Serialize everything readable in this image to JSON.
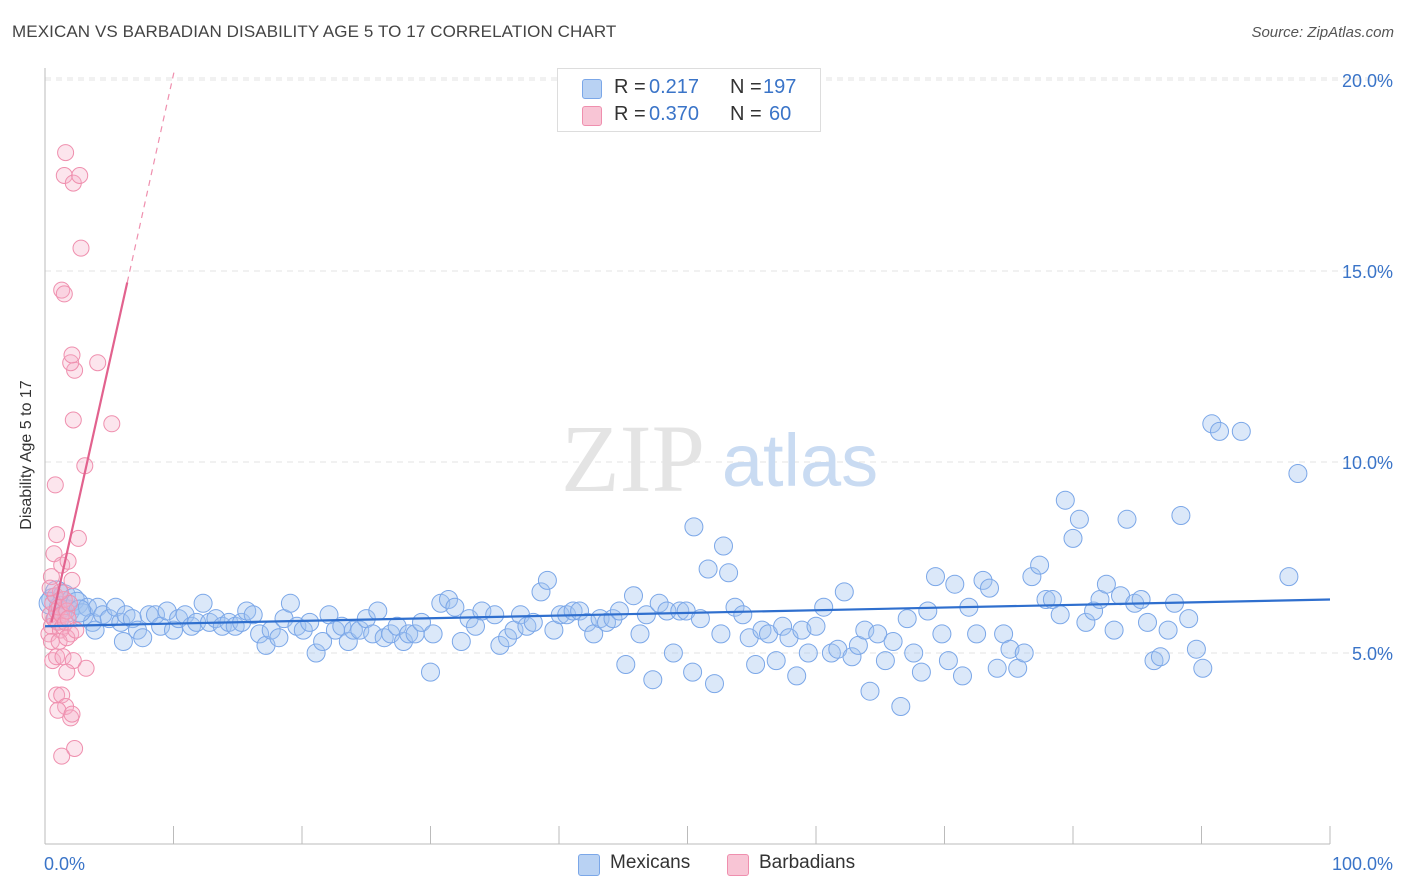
{
  "title": "MEXICAN VS BARBADIAN DISABILITY AGE 5 TO 17 CORRELATION CHART",
  "source": "Source: ZipAtlas.com",
  "watermark": {
    "zip": "ZIP",
    "atlas": "atlas"
  },
  "legend_top": [
    {
      "r_label": "R =",
      "r_value": "0.217",
      "n_label": "N =",
      "n_value": "197",
      "color": "#7ba7e8",
      "fill": "#b9d2f3"
    },
    {
      "r_label": "R =",
      "r_value": "0.370",
      "n_label": "N =",
      "n_value": "60",
      "color": "#ef8fae",
      "fill": "#f8c5d5"
    }
  ],
  "legend_bottom": [
    {
      "label": "Mexicans",
      "color": "#7ba7e8",
      "fill": "#b9d2f3"
    },
    {
      "label": "Barbadians",
      "color": "#ef8fae",
      "fill": "#f8c5d5"
    }
  ],
  "chart_data": {
    "type": "scatter",
    "title": "MEXICAN VS BARBADIAN DISABILITY AGE 5 TO 17 CORRELATION CHART",
    "xlabel": "",
    "ylabel": "Disability Age 5 to 17",
    "xlim": [
      0,
      100
    ],
    "ylim": [
      0,
      21
    ],
    "x_tick_labels": [
      "0.0%",
      "100.0%"
    ],
    "y_ticks": [
      5,
      10,
      15,
      20
    ],
    "y_tick_labels": [
      "5.0%",
      "10.0%",
      "15.0%",
      "20.0%"
    ],
    "grid": true,
    "legend_position": "top-center",
    "series": [
      {
        "name": "Mexicans",
        "color": "#5b8fdb",
        "trend": {
          "x": [
            0,
            100
          ],
          "y": [
            5.7,
            6.4
          ]
        },
        "points": [
          [
            0.6,
            6.4
          ],
          [
            0.9,
            6.6
          ],
          [
            1.2,
            6.2
          ],
          [
            1.5,
            6.5
          ],
          [
            1.8,
            6.1
          ],
          [
            2.2,
            6.4
          ],
          [
            2.5,
            6.3
          ],
          [
            2.9,
            6.0
          ],
          [
            3.3,
            6.2
          ],
          [
            3.7,
            5.8
          ],
          [
            4.1,
            6.2
          ],
          [
            4.5,
            6.0
          ],
          [
            5.0,
            5.9
          ],
          [
            5.5,
            6.2
          ],
          [
            5.9,
            5.8
          ],
          [
            6.3,
            6.0
          ],
          [
            6.8,
            5.9
          ],
          [
            7.2,
            5.6
          ],
          [
            7.6,
            5.4
          ],
          [
            8.1,
            6.0
          ],
          [
            8.6,
            6.0
          ],
          [
            9.0,
            5.7
          ],
          [
            9.5,
            6.1
          ],
          [
            10.0,
            5.6
          ],
          [
            10.4,
            5.9
          ],
          [
            10.9,
            6.0
          ],
          [
            11.4,
            5.7
          ],
          [
            11.8,
            5.8
          ],
          [
            12.3,
            6.3
          ],
          [
            12.8,
            5.8
          ],
          [
            13.3,
            5.9
          ],
          [
            13.8,
            5.7
          ],
          [
            14.3,
            5.8
          ],
          [
            14.8,
            5.7
          ],
          [
            15.3,
            5.8
          ],
          [
            15.7,
            6.1
          ],
          [
            16.2,
            6.0
          ],
          [
            16.7,
            5.5
          ],
          [
            17.2,
            5.2
          ],
          [
            17.6,
            5.6
          ],
          [
            18.2,
            5.4
          ],
          [
            18.6,
            5.9
          ],
          [
            19.1,
            6.3
          ],
          [
            19.6,
            5.7
          ],
          [
            20.1,
            5.6
          ],
          [
            20.6,
            5.8
          ],
          [
            21.1,
            5.0
          ],
          [
            21.6,
            5.3
          ],
          [
            22.1,
            6.0
          ],
          [
            22.6,
            5.6
          ],
          [
            23.1,
            5.7
          ],
          [
            23.6,
            5.3
          ],
          [
            24.0,
            5.6
          ],
          [
            24.5,
            5.6
          ],
          [
            25.0,
            5.9
          ],
          [
            25.5,
            5.5
          ],
          [
            25.9,
            6.1
          ],
          [
            26.4,
            5.4
          ],
          [
            26.9,
            5.5
          ],
          [
            27.4,
            5.7
          ],
          [
            27.9,
            5.3
          ],
          [
            28.3,
            5.5
          ],
          [
            28.8,
            5.5
          ],
          [
            29.3,
            5.8
          ],
          [
            30.0,
            4.5
          ],
          [
            30.2,
            5.5
          ],
          [
            30.8,
            6.3
          ],
          [
            31.4,
            6.4
          ],
          [
            31.9,
            6.2
          ],
          [
            32.4,
            5.3
          ],
          [
            33.0,
            5.9
          ],
          [
            33.5,
            5.7
          ],
          [
            34.0,
            6.1
          ],
          [
            35.0,
            6.0
          ],
          [
            35.4,
            5.2
          ],
          [
            36.0,
            5.4
          ],
          [
            36.5,
            5.6
          ],
          [
            37.0,
            6.0
          ],
          [
            37.5,
            5.7
          ],
          [
            38.0,
            5.8
          ],
          [
            38.6,
            6.6
          ],
          [
            39.1,
            6.9
          ],
          [
            39.6,
            5.6
          ],
          [
            40.1,
            6.0
          ],
          [
            40.6,
            6.0
          ],
          [
            41.1,
            6.1
          ],
          [
            41.6,
            6.1
          ],
          [
            42.2,
            5.8
          ],
          [
            42.7,
            5.5
          ],
          [
            43.2,
            5.9
          ],
          [
            43.7,
            5.8
          ],
          [
            44.2,
            5.9
          ],
          [
            44.7,
            6.1
          ],
          [
            45.2,
            4.7
          ],
          [
            45.8,
            6.5
          ],
          [
            46.3,
            5.5
          ],
          [
            46.8,
            6.0
          ],
          [
            47.3,
            4.3
          ],
          [
            47.8,
            6.3
          ],
          [
            48.4,
            6.1
          ],
          [
            48.9,
            5.0
          ],
          [
            49.4,
            6.1
          ],
          [
            49.9,
            6.1
          ],
          [
            50.4,
            4.5
          ],
          [
            51.0,
            5.9
          ],
          [
            50.5,
            8.3
          ],
          [
            51.6,
            7.2
          ],
          [
            52.1,
            4.2
          ],
          [
            52.6,
            5.5
          ],
          [
            52.8,
            7.8
          ],
          [
            53.2,
            7.1
          ],
          [
            53.7,
            6.2
          ],
          [
            54.3,
            6.0
          ],
          [
            54.8,
            5.4
          ],
          [
            55.3,
            4.7
          ],
          [
            55.8,
            5.6
          ],
          [
            56.3,
            5.5
          ],
          [
            56.9,
            4.8
          ],
          [
            57.4,
            5.7
          ],
          [
            57.9,
            5.4
          ],
          [
            58.5,
            4.4
          ],
          [
            58.9,
            5.6
          ],
          [
            59.4,
            5.0
          ],
          [
            60.0,
            5.7
          ],
          [
            60.6,
            6.2
          ],
          [
            61.2,
            5.0
          ],
          [
            61.7,
            5.1
          ],
          [
            62.2,
            6.6
          ],
          [
            62.8,
            4.9
          ],
          [
            63.3,
            5.2
          ],
          [
            63.8,
            5.6
          ],
          [
            64.2,
            4.0
          ],
          [
            64.8,
            5.5
          ],
          [
            65.4,
            4.8
          ],
          [
            66.0,
            5.3
          ],
          [
            66.6,
            3.6
          ],
          [
            67.1,
            5.9
          ],
          [
            67.6,
            5.0
          ],
          [
            68.2,
            4.5
          ],
          [
            68.7,
            6.1
          ],
          [
            69.3,
            7.0
          ],
          [
            69.8,
            5.5
          ],
          [
            70.3,
            4.8
          ],
          [
            70.8,
            6.8
          ],
          [
            71.4,
            4.4
          ],
          [
            71.9,
            6.2
          ],
          [
            72.5,
            5.5
          ],
          [
            73.0,
            6.9
          ],
          [
            73.5,
            6.7
          ],
          [
            74.1,
            4.6
          ],
          [
            74.6,
            5.5
          ],
          [
            75.1,
            5.1
          ],
          [
            75.7,
            4.6
          ],
          [
            76.2,
            5.0
          ],
          [
            76.8,
            7.0
          ],
          [
            77.4,
            7.3
          ],
          [
            77.9,
            6.4
          ],
          [
            78.4,
            6.4
          ],
          [
            79.0,
            6.0
          ],
          [
            79.4,
            9.0
          ],
          [
            80.0,
            8.0
          ],
          [
            80.5,
            8.5
          ],
          [
            81.0,
            5.8
          ],
          [
            81.6,
            6.1
          ],
          [
            82.1,
            6.4
          ],
          [
            82.6,
            6.8
          ],
          [
            83.2,
            5.6
          ],
          [
            83.7,
            6.5
          ],
          [
            84.2,
            8.5
          ],
          [
            84.8,
            6.3
          ],
          [
            85.3,
            6.4
          ],
          [
            85.8,
            5.8
          ],
          [
            86.3,
            4.8
          ],
          [
            86.8,
            4.9
          ],
          [
            87.4,
            5.6
          ],
          [
            87.9,
            6.3
          ],
          [
            88.4,
            8.6
          ],
          [
            89.0,
            5.9
          ],
          [
            89.6,
            5.1
          ],
          [
            90.1,
            4.6
          ],
          [
            90.8,
            11.0
          ],
          [
            91.4,
            10.8
          ],
          [
            93.1,
            10.8
          ],
          [
            97.5,
            9.7
          ],
          [
            96.8,
            7.0
          ],
          [
            0.4,
            6.3
          ],
          [
            1.0,
            5.9
          ],
          [
            2.7,
            6.1
          ],
          [
            3.9,
            5.6
          ],
          [
            6.1,
            5.3
          ]
        ]
      },
      {
        "name": "Barbadians",
        "color": "#e8739a",
        "trend": {
          "x": [
            0.5,
            6.4
          ],
          "y": [
            5.8,
            14.7
          ],
          "dashed_to": [
            10.1,
            20.3
          ]
        },
        "points": [
          [
            0.3,
            5.5
          ],
          [
            0.4,
            6.0
          ],
          [
            0.5,
            5.7
          ],
          [
            0.6,
            6.3
          ],
          [
            0.7,
            5.9
          ],
          [
            0.8,
            6.5
          ],
          [
            0.9,
            6.1
          ],
          [
            1.0,
            5.8
          ],
          [
            1.1,
            6.2
          ],
          [
            1.2,
            5.6
          ],
          [
            1.3,
            6.0
          ],
          [
            1.4,
            5.7
          ],
          [
            1.5,
            6.4
          ],
          [
            1.6,
            5.8
          ],
          [
            1.7,
            6.1
          ],
          [
            1.8,
            5.9
          ],
          [
            1.9,
            6.3
          ],
          [
            2.0,
            5.5
          ],
          [
            0.5,
            7.0
          ],
          [
            0.7,
            7.6
          ],
          [
            0.9,
            8.1
          ],
          [
            1.3,
            7.3
          ],
          [
            1.8,
            7.4
          ],
          [
            2.6,
            8.0
          ],
          [
            0.8,
            9.4
          ],
          [
            3.1,
            9.9
          ],
          [
            2.2,
            11.1
          ],
          [
            5.2,
            11.0
          ],
          [
            2.3,
            12.4
          ],
          [
            2.0,
            12.6
          ],
          [
            2.1,
            12.8
          ],
          [
            4.1,
            12.6
          ],
          [
            1.3,
            14.5
          ],
          [
            1.5,
            14.4
          ],
          [
            2.8,
            15.6
          ],
          [
            1.5,
            17.5
          ],
          [
            2.2,
            17.3
          ],
          [
            2.7,
            17.5
          ],
          [
            1.6,
            18.1
          ],
          [
            0.6,
            4.8
          ],
          [
            0.9,
            4.9
          ],
          [
            1.4,
            4.9
          ],
          [
            2.2,
            4.8
          ],
          [
            3.2,
            4.6
          ],
          [
            1.7,
            4.5
          ],
          [
            0.9,
            3.9
          ],
          [
            1.3,
            3.9
          ],
          [
            1.6,
            3.6
          ],
          [
            1.0,
            3.5
          ],
          [
            2.0,
            3.3
          ],
          [
            2.1,
            3.4
          ],
          [
            2.3,
            2.5
          ],
          [
            1.3,
            2.3
          ],
          [
            0.5,
            5.3
          ],
          [
            1.1,
            5.3
          ],
          [
            1.7,
            5.4
          ],
          [
            2.4,
            5.6
          ],
          [
            1.2,
            6.6
          ],
          [
            2.1,
            6.9
          ],
          [
            0.4,
            6.7
          ]
        ]
      }
    ]
  }
}
